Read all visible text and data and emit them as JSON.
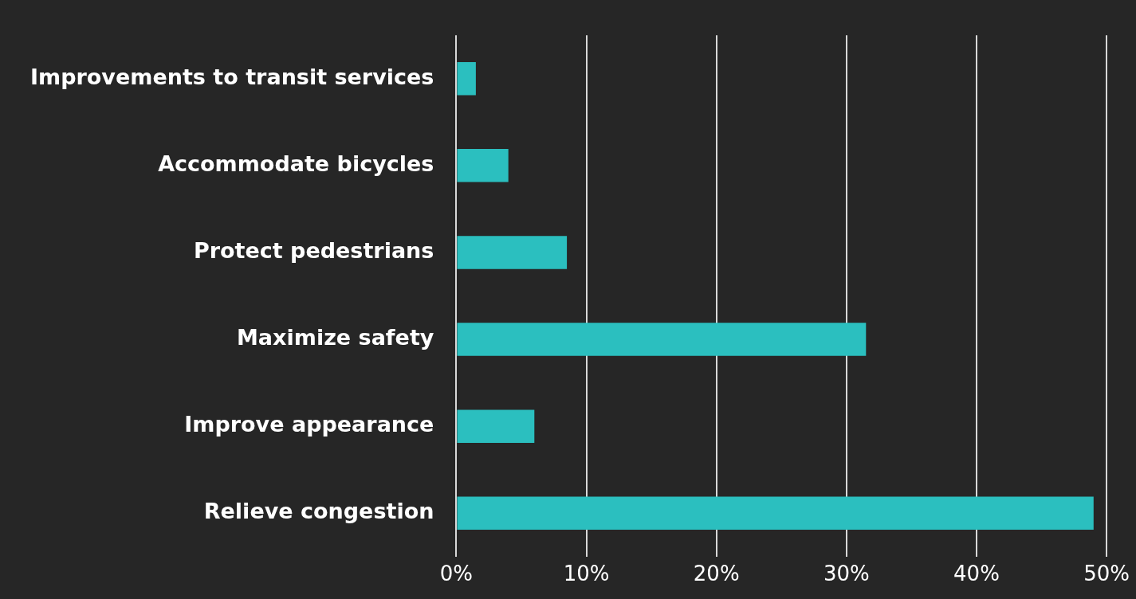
{
  "chart_data": {
    "type": "bar",
    "orientation": "horizontal",
    "categories": [
      "Improvements to transit services",
      "Accommodate bicycles",
      "Protect pedestrians",
      "Maximize safety",
      "Improve appearance",
      "Relieve congestion"
    ],
    "values": [
      1.5,
      4,
      8.5,
      31.5,
      6,
      49
    ],
    "color": "#2bbfbf",
    "xlim": [
      0,
      50
    ],
    "xticks": [
      {
        "value": 0,
        "label": "0%"
      },
      {
        "value": 10,
        "label": "10%"
      },
      {
        "value": 20,
        "label": "20%"
      },
      {
        "value": 30,
        "label": "30%"
      },
      {
        "value": 40,
        "label": "40%"
      },
      {
        "value": 50,
        "label": "50%"
      }
    ],
    "grid": "x",
    "legend": false
  }
}
